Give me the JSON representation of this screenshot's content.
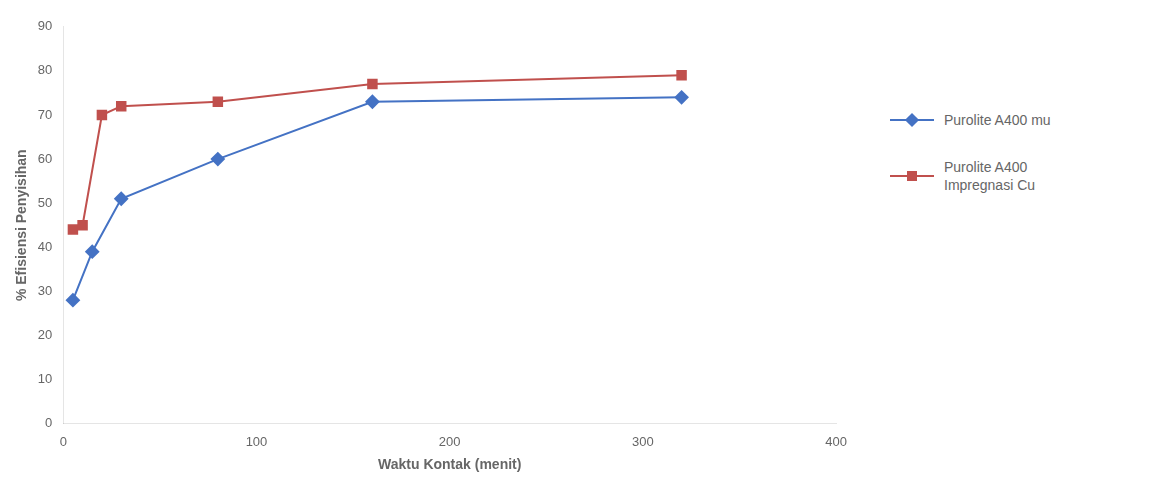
{
  "chart_data": {
    "type": "line",
    "xlabel": "Waktu Kontak (menit)",
    "ylabel": "% Efisiensi Penyisihan",
    "series": [
      {
        "name": "Purolite A400 mu",
        "color": "#4472C4",
        "marker": "diamond",
        "x": [
          5,
          15,
          30,
          80,
          160,
          320
        ],
        "values": [
          28,
          39,
          51,
          60,
          73,
          74
        ]
      },
      {
        "name": "Purolite A400\nImpregnasi Cu",
        "color": "#C0504D",
        "marker": "square",
        "x": [
          5,
          10,
          20,
          30,
          80,
          160,
          320
        ],
        "values": [
          44,
          45,
          70,
          72,
          73,
          77,
          79
        ]
      }
    ],
    "xlim": [
      0,
      400
    ],
    "ylim": [
      0,
      90
    ],
    "xticks": [
      0,
      100,
      200,
      300,
      400
    ],
    "yticks": [
      0,
      10,
      20,
      30,
      40,
      50,
      60,
      70,
      80,
      90
    ],
    "grid": false,
    "legend": "right"
  }
}
